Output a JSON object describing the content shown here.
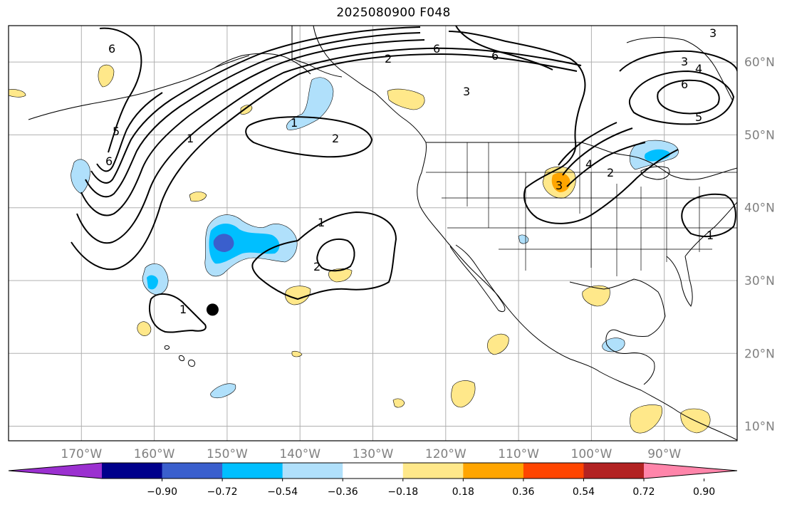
{
  "title": "2025080900 F048",
  "map": {
    "type": "contour-and-filled-anomaly map",
    "projection": "Plate Carree",
    "lon_range": [
      -180,
      -80
    ],
    "lat_range": [
      8,
      65
    ],
    "grid": true,
    "lon_ticks": [
      {
        "value": -170,
        "label": "170°W"
      },
      {
        "value": -160,
        "label": "160°W"
      },
      {
        "value": -150,
        "label": "150°W"
      },
      {
        "value": -140,
        "label": "140°W"
      },
      {
        "value": -130,
        "label": "130°W"
      },
      {
        "value": -120,
        "label": "120°W"
      },
      {
        "value": -110,
        "label": "110°W"
      },
      {
        "value": -100,
        "label": "100°W"
      },
      {
        "value": -90,
        "label": "90°W"
      }
    ],
    "lat_ticks": [
      {
        "value": 10,
        "label": "10°N"
      },
      {
        "value": 20,
        "label": "20°N"
      },
      {
        "value": 30,
        "label": "30°N"
      },
      {
        "value": 40,
        "label": "40°N"
      },
      {
        "value": 50,
        "label": "50°N"
      },
      {
        "value": 60,
        "label": "60°N"
      }
    ],
    "marker": {
      "name": "storm-position-dot",
      "lon": -152,
      "lat": 26,
      "color": "#000000"
    },
    "contour_labels": [
      "1",
      "2",
      "3",
      "4",
      "5",
      "6"
    ]
  },
  "colorbar": {
    "ticks": [
      "−0.90",
      "−0.72",
      "−0.54",
      "−0.36",
      "−0.18",
      "0.18",
      "0.36",
      "0.54",
      "0.72",
      "0.90"
    ],
    "colors": [
      "#9b30d0",
      "#00008b",
      "#3a5fcd",
      "#00bfff",
      "#b0e0fb",
      "#ffffff",
      "#ffe88a",
      "#ffa500",
      "#ff4500",
      "#b22222",
      "#ff85aa"
    ],
    "extend": "both"
  }
}
